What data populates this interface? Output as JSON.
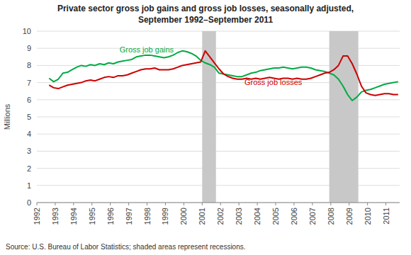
{
  "chart_data": {
    "type": "line",
    "title": "Private sector gross job gains and gross job losses, seasonally adjusted,",
    "subtitle": "September 1992–September 2011",
    "y_label": "Millions",
    "source": "Source: U.S. Bureau of Labor Statistics; shaded areas represent recessions.",
    "xlim": [
      1992.0,
      2011.75
    ],
    "xticks": [
      1992,
      1993,
      1994,
      1995,
      1996,
      1997,
      1998,
      1999,
      2000,
      2001,
      2002,
      2003,
      2004,
      2005,
      2006,
      2007,
      2008,
      2009,
      2010,
      2011
    ],
    "ylim": [
      0,
      10
    ],
    "yticks": [
      0,
      1,
      2,
      3,
      4,
      5,
      6,
      7,
      8,
      9,
      10
    ],
    "grid": "y",
    "bands": [
      {
        "x0": 2001.0,
        "x1": 2001.75,
        "color": "#C8C8C8"
      },
      {
        "x0": 2007.917,
        "x1": 2009.5,
        "color": "#C8C8C8"
      }
    ],
    "x": [
      1992.667,
      1992.917,
      1993.167,
      1993.417,
      1993.667,
      1993.917,
      1994.167,
      1994.417,
      1994.667,
      1994.917,
      1995.167,
      1995.417,
      1995.667,
      1995.917,
      1996.167,
      1996.417,
      1996.667,
      1996.917,
      1997.167,
      1997.417,
      1997.667,
      1997.917,
      1998.167,
      1998.417,
      1998.667,
      1998.917,
      1999.167,
      1999.417,
      1999.667,
      1999.917,
      2000.167,
      2000.417,
      2000.667,
      2000.917,
      2001.167,
      2001.417,
      2001.667,
      2001.917,
      2002.167,
      2002.417,
      2002.667,
      2002.917,
      2003.167,
      2003.417,
      2003.667,
      2003.917,
      2004.167,
      2004.417,
      2004.667,
      2004.917,
      2005.167,
      2005.417,
      2005.667,
      2005.917,
      2006.167,
      2006.417,
      2006.667,
      2006.917,
      2007.167,
      2007.417,
      2007.667,
      2007.917,
      2008.167,
      2008.417,
      2008.667,
      2008.917,
      2009.167,
      2009.417,
      2009.667,
      2009.917,
      2010.167,
      2010.417,
      2010.667,
      2010.917,
      2011.167,
      2011.417,
      2011.667
    ],
    "series": [
      {
        "color": "#00AA44",
        "values": [
          7.25,
          7.05,
          7.2,
          7.55,
          7.6,
          7.75,
          7.9,
          8.0,
          7.95,
          8.05,
          8.0,
          8.1,
          8.05,
          8.15,
          8.1,
          8.2,
          8.25,
          8.3,
          8.35,
          8.5,
          8.55,
          8.6,
          8.6,
          8.55,
          8.5,
          8.45,
          8.5,
          8.6,
          8.75,
          8.85,
          8.8,
          8.7,
          8.55,
          8.3,
          8.15,
          8.05,
          7.9,
          7.55,
          7.5,
          7.45,
          7.4,
          7.35,
          7.35,
          7.45,
          7.55,
          7.6,
          7.7,
          7.75,
          7.8,
          7.85,
          7.85,
          7.9,
          7.85,
          7.8,
          7.85,
          7.9,
          7.9,
          7.85,
          7.75,
          7.7,
          7.65,
          7.55,
          7.45,
          7.2,
          6.8,
          6.3,
          5.95,
          6.15,
          6.45,
          6.55,
          6.6,
          6.7,
          6.8,
          6.9,
          6.95,
          7.0,
          7.05
        ]
      },
      {
        "color": "#CC0000",
        "values": [
          6.85,
          6.7,
          6.65,
          6.75,
          6.85,
          6.9,
          6.95,
          7.0,
          7.1,
          7.15,
          7.1,
          7.2,
          7.3,
          7.35,
          7.3,
          7.4,
          7.4,
          7.45,
          7.55,
          7.65,
          7.75,
          7.8,
          7.8,
          7.85,
          7.75,
          7.75,
          7.75,
          7.8,
          7.9,
          8.0,
          8.05,
          8.1,
          8.15,
          8.2,
          8.85,
          8.5,
          8.15,
          7.8,
          7.5,
          7.35,
          7.25,
          7.2,
          7.2,
          7.25,
          7.2,
          7.25,
          7.2,
          7.25,
          7.3,
          7.25,
          7.2,
          7.25,
          7.25,
          7.2,
          7.25,
          7.2,
          7.2,
          7.25,
          7.35,
          7.45,
          7.55,
          7.6,
          7.75,
          8.0,
          8.55,
          8.55,
          8.1,
          7.5,
          6.8,
          6.4,
          6.3,
          6.25,
          6.3,
          6.35,
          6.35,
          6.3,
          6.3
        ]
      }
    ],
    "annotations": [
      {
        "text": "Gross job gains",
        "x": 1996.5,
        "y": 8.78,
        "color": "#00AA44"
      },
      {
        "text": "Gross job losses",
        "x": 2003.3,
        "y": 6.85,
        "color": "#CC0000"
      }
    ]
  }
}
